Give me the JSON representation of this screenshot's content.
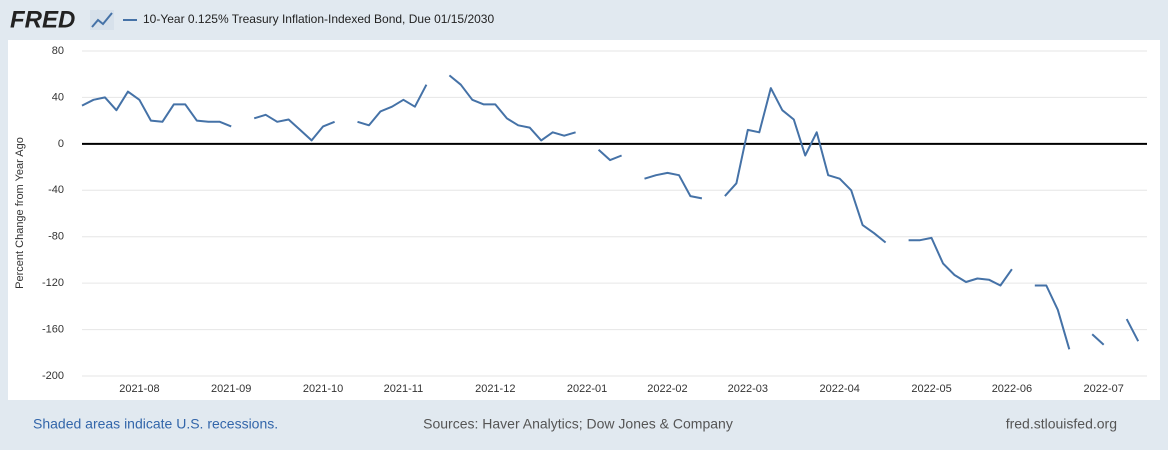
{
  "brand": "FRED",
  "footer": {
    "recessions": "Shaded areas indicate U.S. recessions.",
    "sources": "Sources: Haver Analytics; Dow Jones & Company",
    "site": "fred.stlouisfed.org"
  },
  "chart_data": {
    "type": "line",
    "ylabel": "Percent Change from Year Ago",
    "categories": [
      null,
      null,
      null,
      null,
      null,
      "2021-08",
      null,
      null,
      null,
      null,
      null,
      null,
      null,
      "2021-09",
      null,
      null,
      null,
      null,
      null,
      null,
      null,
      "2021-10",
      null,
      null,
      null,
      null,
      null,
      null,
      "2021-11",
      null,
      null,
      null,
      null,
      null,
      null,
      null,
      "2021-12",
      null,
      null,
      null,
      null,
      null,
      null,
      null,
      "2022-01",
      null,
      null,
      null,
      null,
      null,
      null,
      "2022-02",
      null,
      null,
      null,
      null,
      null,
      null,
      "2022-03",
      null,
      null,
      null,
      null,
      null,
      null,
      null,
      "2022-04",
      null,
      null,
      null,
      null,
      null,
      null,
      null,
      "2022-05",
      null,
      null,
      null,
      null,
      null,
      null,
      "2022-06",
      null,
      null,
      null,
      null,
      null,
      null,
      null,
      "2022-07",
      null,
      null,
      null
    ],
    "series": [
      {
        "name": "10-Year 0.125% Treasury Inflation-Indexed Bond, Due 01/15/2030",
        "color": "#4572a7",
        "values": [
          33,
          38,
          40,
          29,
          45,
          38,
          20,
          19,
          34,
          34,
          20,
          19,
          19,
          15,
          null,
          22,
          25,
          19,
          21,
          12,
          3,
          15,
          19,
          null,
          19,
          16,
          28,
          32,
          38,
          32,
          51,
          null,
          59,
          51,
          38,
          34,
          34,
          22,
          16,
          14,
          3,
          10,
          7,
          10,
          null,
          -5,
          -14,
          -10,
          null,
          -30,
          -27,
          -25,
          -27,
          -45,
          -47,
          null,
          -45,
          -34,
          12,
          10,
          48,
          29,
          21,
          -10,
          10,
          -27,
          -30,
          -40,
          -70,
          -77,
          -85,
          null,
          -83,
          -83,
          -81,
          -103,
          -113,
          -119,
          -116,
          -117,
          -122,
          -108,
          null,
          -122,
          -122,
          -143,
          -177,
          null,
          -164,
          -173,
          null,
          -151,
          -170
        ]
      }
    ],
    "ylim": [
      -200,
      80
    ],
    "yticks": [
      80,
      40,
      0,
      -40,
      -80,
      -120,
      -160,
      -200
    ],
    "grid": true,
    "zero_line": true
  }
}
